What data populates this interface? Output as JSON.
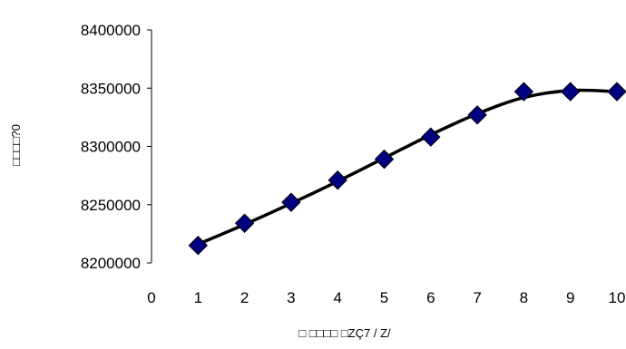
{
  "chart_data": {
    "type": "scatter",
    "title": "",
    "xlabel": "□ □□□□ □ZÇ7 / Z/",
    "ylabel": "□□□□?0",
    "xlim": [
      0,
      10
    ],
    "ylim": [
      8200000,
      8400000
    ],
    "x_ticks": [
      "0",
      "1",
      "2",
      "3",
      "4",
      "5",
      "6",
      "7",
      "8",
      "9",
      "10"
    ],
    "y_ticks": [
      "8200000",
      "8250000",
      "8300000",
      "8350000",
      "8400000"
    ],
    "grid": false,
    "legend": "none",
    "series": [
      {
        "marker": "diamond",
        "marker_color": "#000080",
        "x": [
          1,
          2,
          3,
          4,
          5,
          6,
          7,
          8,
          9,
          10
        ],
        "y": [
          8215000,
          8234000,
          8252000,
          8271000,
          8289000,
          8308000,
          8327000,
          8347000,
          8347000,
          8347000
        ]
      }
    ],
    "trendline": {
      "type": "polynomial",
      "color": "#000000",
      "x": [
        1,
        2,
        3,
        4,
        5,
        6,
        7,
        8,
        9,
        10
      ],
      "y": [
        8216000,
        8233000,
        8251000,
        8270000,
        8290000,
        8310000,
        8328000,
        8342000,
        8348000,
        8347000
      ]
    }
  }
}
